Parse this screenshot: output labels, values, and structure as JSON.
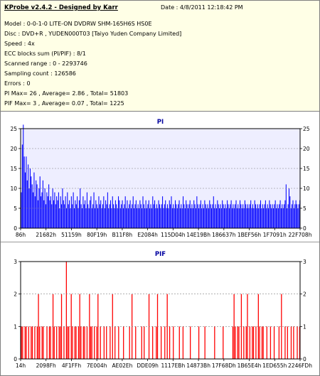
{
  "header": {
    "title": "KProbe v2.4.2 - Designed by Karr",
    "date": "Date : 4/8/2011 12:18:42 PM"
  },
  "info_lines": [
    "Model : 0-0-1-0 LITE-ON DVDRW SHM-165H6S HS0E",
    "Disc : DVD+R , YUDEN000T03 [Taiyo Yuden Company Limited]",
    "Speed : 4x",
    "ECC blocks sum (PI/PIF) : 8/1",
    "Scanned range : 0 - 2293746",
    "Sampling count : 126586",
    "Errors : 0",
    "PI Max= 26 , Average= 2.86 , Total= 51803",
    "PIF Max= 3 , Average= 0.07 , Total= 1225"
  ],
  "colors": {
    "pi_bar": "#0000ff",
    "pi_title": "#0000a0",
    "pif_bar": "#ff0000",
    "pif_title": "#0000a0",
    "plot_bg": "#eeeeff",
    "pif_plot_bg": "#ffffff",
    "info_bg": "#ffffe6"
  },
  "chart_data": [
    {
      "type": "bar",
      "title": "PI",
      "ylim": [
        0,
        25
      ],
      "yticks": [
        0,
        5,
        10,
        15,
        20,
        25
      ],
      "xticks": [
        "86h",
        "21682h",
        "51159h",
        "80F19h",
        "B11F8h",
        "E2084h",
        "115D04h",
        "14E19Bh",
        "186637h",
        "1BEF56h",
        "1F7091h",
        "22F708h"
      ],
      "grid": true,
      "legend": "none",
      "series": [
        {
          "values": [
            9,
            21,
            26,
            18,
            14,
            18,
            12,
            16,
            10,
            15,
            13,
            11,
            9,
            14,
            8,
            12,
            11,
            7,
            10,
            13,
            8,
            9,
            12,
            7,
            10,
            6,
            9,
            8,
            11,
            7,
            8,
            6,
            10,
            7,
            9,
            6,
            8,
            7,
            9,
            5,
            8,
            6,
            10,
            7,
            6,
            8,
            5,
            9,
            6,
            7,
            5,
            8,
            6,
            9,
            5,
            7,
            6,
            8,
            5,
            7,
            10,
            6,
            5,
            8,
            6,
            7,
            5,
            9,
            6,
            5,
            7,
            8,
            5,
            6,
            9,
            5,
            7,
            6,
            5,
            8,
            6,
            7,
            5,
            6,
            8,
            5,
            7,
            6,
            9,
            5,
            6,
            7,
            5,
            8,
            6,
            5,
            7,
            6,
            5,
            8,
            7,
            5,
            6,
            7,
            5,
            6,
            8,
            5,
            7,
            5,
            6,
            7,
            5,
            6,
            8,
            5,
            6,
            7,
            5,
            6,
            5,
            7,
            6,
            5,
            8,
            6,
            5,
            7,
            5,
            6,
            7,
            5,
            6,
            5,
            8,
            6,
            7,
            5,
            6,
            5,
            7,
            6,
            5,
            6,
            8,
            5,
            6,
            7,
            5,
            6,
            5,
            7,
            6,
            8,
            5,
            6,
            5,
            7,
            6,
            5,
            6,
            7,
            5,
            6,
            5,
            8,
            6,
            5,
            7,
            6,
            5,
            6,
            7,
            5,
            6,
            5,
            7,
            6,
            5,
            8,
            6,
            5,
            6,
            7,
            5,
            6,
            5,
            7,
            6,
            5,
            6,
            5,
            7,
            6,
            5,
            6,
            8,
            5,
            6,
            5,
            7,
            6,
            5,
            6,
            5,
            7,
            6,
            5,
            6,
            5,
            7,
            6,
            5,
            6,
            7,
            5,
            6,
            5,
            6,
            7,
            5,
            6,
            5,
            7,
            6,
            5,
            6,
            5,
            7,
            6,
            5,
            6,
            5,
            6,
            7,
            5,
            6,
            5,
            7,
            6,
            5,
            6,
            5,
            6,
            7,
            5,
            6,
            5,
            6,
            7,
            5,
            6,
            5,
            7,
            6,
            5,
            6,
            5,
            6,
            7,
            5,
            6,
            5,
            6,
            7,
            5,
            6,
            5,
            6,
            7,
            11,
            5,
            6,
            10,
            8,
            5,
            6,
            7,
            5,
            6,
            7,
            6,
            5,
            6,
            7
          ]
        }
      ]
    },
    {
      "type": "bar",
      "title": "PIF",
      "ylim": [
        0,
        3
      ],
      "yticks": [
        0,
        1,
        2,
        3
      ],
      "xticks": [
        "14h",
        "2098Fh",
        "4F1FFh",
        "7E004h",
        "AE02Eh",
        "DDE09h",
        "1117EBh",
        "14873Bh",
        "17F68Dh",
        "1B65E4h",
        "1ED655h",
        "2246FDh"
      ],
      "grid": true,
      "legend": "none",
      "series": [
        {
          "values": [
            1,
            1,
            0,
            1,
            1,
            0,
            1,
            0,
            1,
            1,
            0,
            1,
            0,
            1,
            2,
            1,
            0,
            1,
            1,
            0,
            0,
            1,
            0,
            1,
            1,
            0,
            2,
            1,
            0,
            1,
            0,
            1,
            1,
            2,
            0,
            1,
            0,
            3,
            1,
            1,
            0,
            2,
            1,
            0,
            1,
            1,
            0,
            1,
            2,
            1,
            0,
            1,
            1,
            0,
            1,
            0,
            2,
            1,
            1,
            0,
            1,
            0,
            1,
            2,
            0,
            1,
            0,
            0,
            1,
            0,
            1,
            0,
            0,
            1,
            0,
            2,
            0,
            1,
            0,
            0,
            1,
            0,
            0,
            0,
            1,
            0,
            0,
            0,
            0,
            1,
            0,
            2,
            0,
            0,
            1,
            0,
            0,
            0,
            0,
            1,
            0,
            1,
            0,
            0,
            0,
            2,
            0,
            0,
            1,
            0,
            0,
            1,
            2,
            0,
            0,
            1,
            0,
            0,
            1,
            0,
            2,
            0,
            1,
            0,
            0,
            1,
            0,
            0,
            0,
            0,
            1,
            0,
            0,
            1,
            0,
            0,
            0,
            0,
            0,
            1,
            0,
            0,
            0,
            0,
            0,
            0,
            1,
            0,
            0,
            0,
            0,
            1,
            0,
            0,
            0,
            0,
            0,
            0,
            0,
            1,
            0,
            0,
            0,
            0,
            0,
            0,
            1,
            0,
            0,
            0,
            0,
            0,
            0,
            0,
            1,
            2,
            1,
            0,
            1,
            1,
            0,
            2,
            0,
            1,
            0,
            1,
            2,
            0,
            1,
            0,
            1,
            1,
            0,
            1,
            0,
            2,
            1,
            0,
            1,
            1,
            0,
            0,
            1,
            0,
            0,
            1,
            0,
            0,
            1,
            0,
            0,
            0,
            1,
            0,
            2,
            0,
            0,
            1,
            0,
            1,
            0,
            0,
            1,
            0,
            1,
            0,
            0,
            1,
            0,
            1
          ]
        }
      ]
    }
  ]
}
